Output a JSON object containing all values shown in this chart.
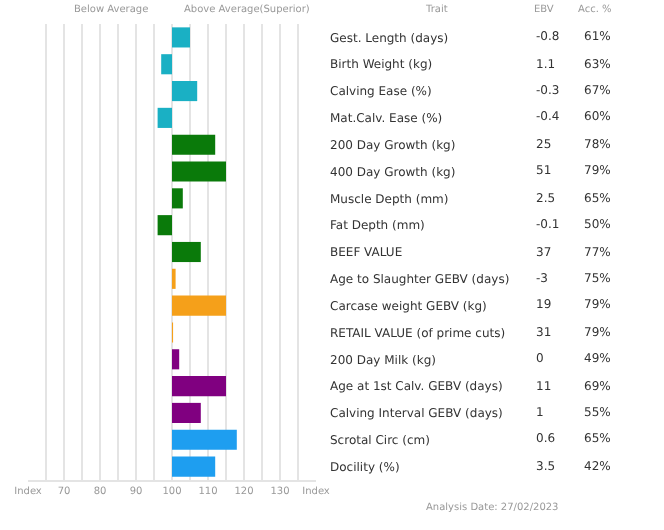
{
  "chart_data": {
    "type": "bar",
    "orientation": "horizontal",
    "categories": [
      "Gest. Length (days)",
      "Birth Weight (kg)",
      "Calving Ease (%)",
      "Mat.Calv. Ease (%)",
      "200 Day Growth (kg)",
      "400 Day Growth (kg)",
      "Muscle Depth (mm)",
      "Fat Depth (mm)",
      "BEEF VALUE",
      "Age to Slaughter GEBV (days)",
      "Carcase weight GEBV (kg)",
      "RETAIL VALUE (of prime cuts)",
      "200 Day Milk (kg)",
      "Age at 1st Calv. GEBV (days)",
      "Calving Interval GEBV (days)",
      "Scrotal Circ (cm)",
      "Docility (%)"
    ],
    "base": [
      100,
      100,
      100,
      100,
      100,
      100,
      100,
      100,
      100,
      100,
      100,
      100,
      100,
      100,
      100,
      100,
      100
    ],
    "values": [
      5,
      -3,
      7,
      -4,
      12,
      15,
      3,
      -4,
      8,
      1,
      15,
      0.3,
      2,
      15,
      8,
      18,
      12
    ],
    "colors": [
      "#1ab0c4",
      "#1ab0c4",
      "#1ab0c4",
      "#1ab0c4",
      "#0a7a0a",
      "#0a7a0a",
      "#0a7a0a",
      "#0a7a0a",
      "#0a7a0a",
      "#f5a01a",
      "#f5a01a",
      "#f5a01a",
      "#800080",
      "#800080",
      "#800080",
      "#1e9ef0",
      "#1e9ef0"
    ],
    "xlim": [
      60,
      140
    ],
    "xticks": [
      {
        "value": 60,
        "label": "Index"
      },
      {
        "value": 65,
        "label": null
      },
      70,
      {
        "value": 75,
        "label": null
      },
      80,
      {
        "value": 85,
        "label": null
      },
      90,
      {
        "value": 95,
        "label": null
      },
      100,
      {
        "value": 105,
        "label": null
      },
      110,
      {
        "value": 115,
        "label": null
      },
      120,
      {
        "value": 125,
        "label": null
      },
      130,
      {
        "value": 135,
        "label": null
      },
      {
        "value": 140,
        "label": "Index"
      }
    ],
    "grid": "x",
    "annotations": [
      "Below Average",
      "Above Average(Superior)",
      "Trait",
      "EBV",
      "Acc. %",
      "Analysis Date: 27/02/2023",
      "-0.8",
      "61%",
      "1.1",
      "63%",
      "-0.3",
      "67%",
      "-0.4",
      "60%",
      "25",
      "78%",
      "51",
      "79%",
      "2.5",
      "65%",
      "-0.1",
      "50%",
      "37",
      "77%",
      "-3",
      "75%",
      "19",
      "79%",
      "31",
      "79%",
      "0",
      "49%",
      "11",
      "69%",
      "1",
      "55%",
      "0.6",
      "65%",
      "3.5",
      "42%"
    ]
  }
}
